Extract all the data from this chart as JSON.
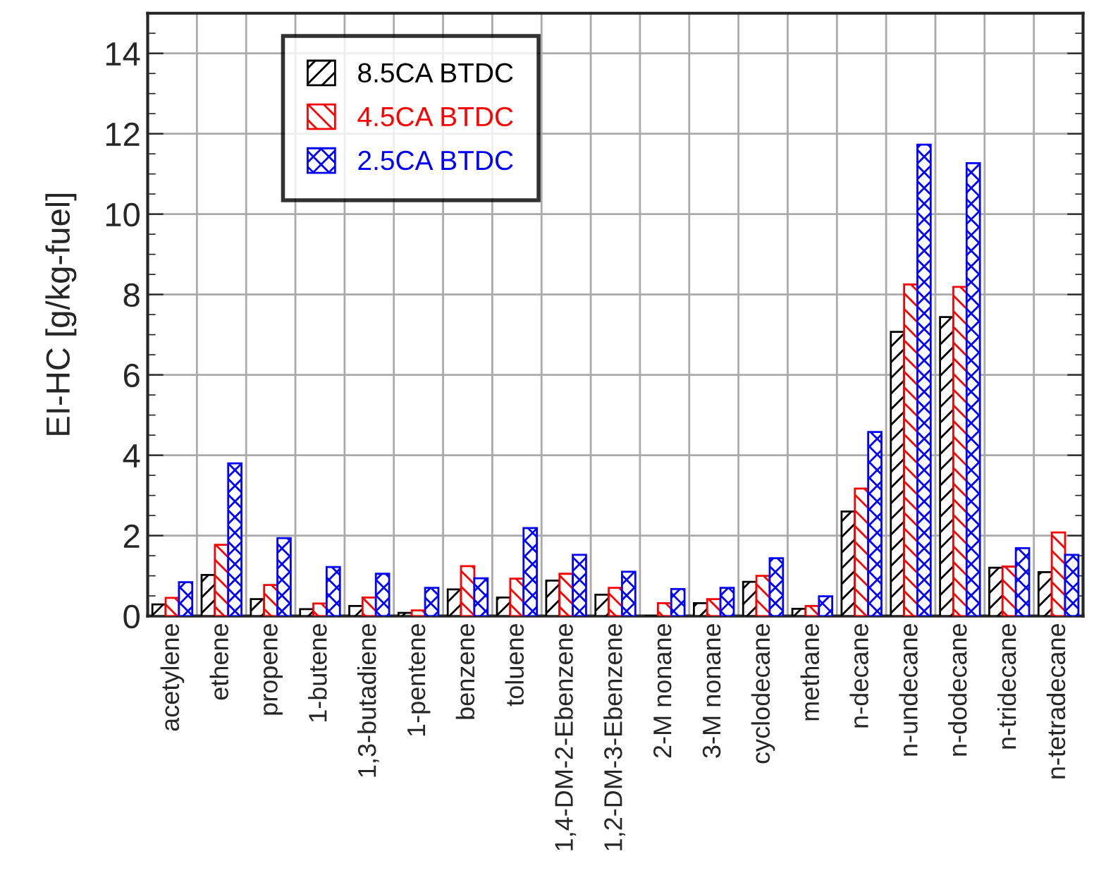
{
  "chart_data": {
    "type": "bar",
    "ylabel": "EI-HC [g/kg-fuel]",
    "categories": [
      "acetylene",
      "ethene",
      "propene",
      "1-butene",
      "1,3-butadiene",
      "1-pentene",
      "benzene",
      "toluene",
      "1,4-DM-2-Ebenzene",
      "1,2-DM-3-Ebenzene",
      "2-M nonane",
      "3-M nonane",
      "cyclodecane",
      "methane",
      "n-decane",
      "n-undecane",
      "n-dodecane",
      "n-tridecane",
      "n-tetradecane"
    ],
    "series": [
      {
        "name": "8.5CA BTDC",
        "color": "#000000",
        "values": [
          0.29,
          1.02,
          0.42,
          0.17,
          0.25,
          0.08,
          0.66,
          0.46,
          0.88,
          0.53,
          0,
          0.32,
          0.85,
          0.18,
          2.6,
          7.07,
          7.44,
          1.2,
          1.09
        ]
      },
      {
        "name": "4.5CA BTDC",
        "color": "#ff0000",
        "values": [
          0.45,
          1.77,
          0.77,
          0.31,
          0.46,
          0.14,
          1.24,
          0.93,
          1.05,
          0.7,
          0.32,
          0.42,
          1.0,
          0.25,
          3.17,
          8.25,
          8.19,
          1.23,
          2.08
        ]
      },
      {
        "name": "2.5CA BTDC",
        "color": "#0000ff",
        "values": [
          0.84,
          3.8,
          1.94,
          1.22,
          1.05,
          0.7,
          0.94,
          2.19,
          1.52,
          1.1,
          0.67,
          0.7,
          1.44,
          0.49,
          4.58,
          11.73,
          11.27,
          1.69,
          1.52
        ]
      }
    ],
    "ylim": [
      0,
      15
    ],
    "yticks": [
      0,
      2,
      4,
      6,
      8,
      10,
      12,
      14
    ],
    "grid": true,
    "legend": "top left"
  }
}
